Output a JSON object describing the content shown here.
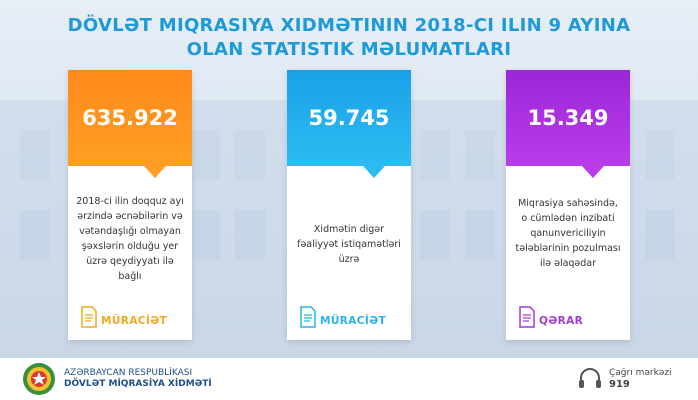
{
  "title": {
    "line1": "DÖVLƏT MIQRASIYA XIDMƏTININ 2018-CI ILIN 9 AYINA",
    "line2": "OLAN STATISTIK MƏLUMATLARI"
  },
  "cards": [
    {
      "value": "635.922",
      "description": "2018-ci ilin doqquz ayı ərzində əcnəbilərin və vətəndaşlığı olmayan şəxslərin olduğu yer üzrə qeydiyyatı ilə bağlı",
      "footer_label": "MÜRACİƏT",
      "icon": "document-icon",
      "color": "#ff9e22"
    },
    {
      "value": "59.745",
      "description": "Xidmətin digər fəaliyyət istiqamətləri üzrə",
      "footer_label": "MÜRACİƏT",
      "icon": "document-icon",
      "color": "#2dbcf2"
    },
    {
      "value": "15.349",
      "description": "Miqrasiya sahəsində, o cümlədən inzibati qanunvericiliyin tələblərinin pozulması ilə əlaqədar",
      "footer_label": "QƏRAR",
      "icon": "document-icon",
      "color": "#b93ce8"
    }
  ],
  "footer": {
    "org_line1": "AZƏRBAYCAN RESPUBLİKASI",
    "org_line2": "DÖVLƏT MİQRASİYA XİDMƏTİ",
    "call_center_label": "Çağrı mərkəzi",
    "call_center_number": "919"
  }
}
